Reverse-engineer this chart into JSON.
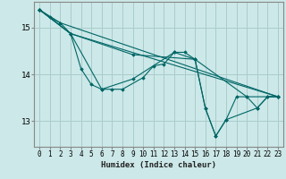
{
  "xlabel": "Humidex (Indice chaleur)",
  "bg_color": "#cce8e8",
  "grid_color": "#aacccc",
  "line_color": "#006666",
  "spine_color": "#888888",
  "xlim": [
    -0.5,
    23.5
  ],
  "ylim": [
    12.45,
    15.55
  ],
  "yticks": [
    13,
    14,
    15
  ],
  "xticks": [
    0,
    1,
    2,
    3,
    4,
    5,
    6,
    7,
    8,
    9,
    10,
    11,
    12,
    13,
    14,
    15,
    16,
    17,
    18,
    19,
    20,
    21,
    22,
    23
  ],
  "series_main": [
    [
      0,
      15.38
    ],
    [
      1,
      15.22
    ],
    [
      2,
      15.1
    ],
    [
      3,
      14.87
    ],
    [
      4,
      14.12
    ],
    [
      5,
      13.78
    ],
    [
      6,
      13.68
    ],
    [
      7,
      13.68
    ],
    [
      8,
      13.68
    ],
    [
      10,
      13.93
    ],
    [
      11,
      14.18
    ],
    [
      12,
      14.22
    ],
    [
      13,
      14.47
    ],
    [
      14,
      14.47
    ],
    [
      15,
      14.32
    ],
    [
      16,
      13.27
    ],
    [
      17,
      12.68
    ],
    [
      18,
      13.03
    ],
    [
      19,
      13.52
    ],
    [
      20,
      13.52
    ],
    [
      21,
      13.28
    ],
    [
      22,
      13.52
    ],
    [
      23,
      13.52
    ]
  ],
  "series_line1": [
    [
      0,
      15.38
    ],
    [
      3,
      14.87
    ],
    [
      23,
      13.52
    ]
  ],
  "series_line2": [
    [
      0,
      15.38
    ],
    [
      2,
      15.1
    ],
    [
      23,
      13.52
    ]
  ],
  "series_line3": [
    [
      0,
      15.38
    ],
    [
      3,
      14.87
    ],
    [
      9,
      14.42
    ],
    [
      15,
      14.32
    ],
    [
      20,
      13.52
    ],
    [
      23,
      13.52
    ]
  ],
  "series_line4": [
    [
      0,
      15.38
    ],
    [
      3,
      14.87
    ],
    [
      6,
      13.68
    ],
    [
      9,
      13.9
    ],
    [
      13,
      14.47
    ],
    [
      15,
      14.32
    ],
    [
      16,
      13.27
    ],
    [
      17,
      12.68
    ],
    [
      18,
      13.03
    ],
    [
      21,
      13.28
    ],
    [
      22,
      13.52
    ],
    [
      23,
      13.52
    ]
  ]
}
